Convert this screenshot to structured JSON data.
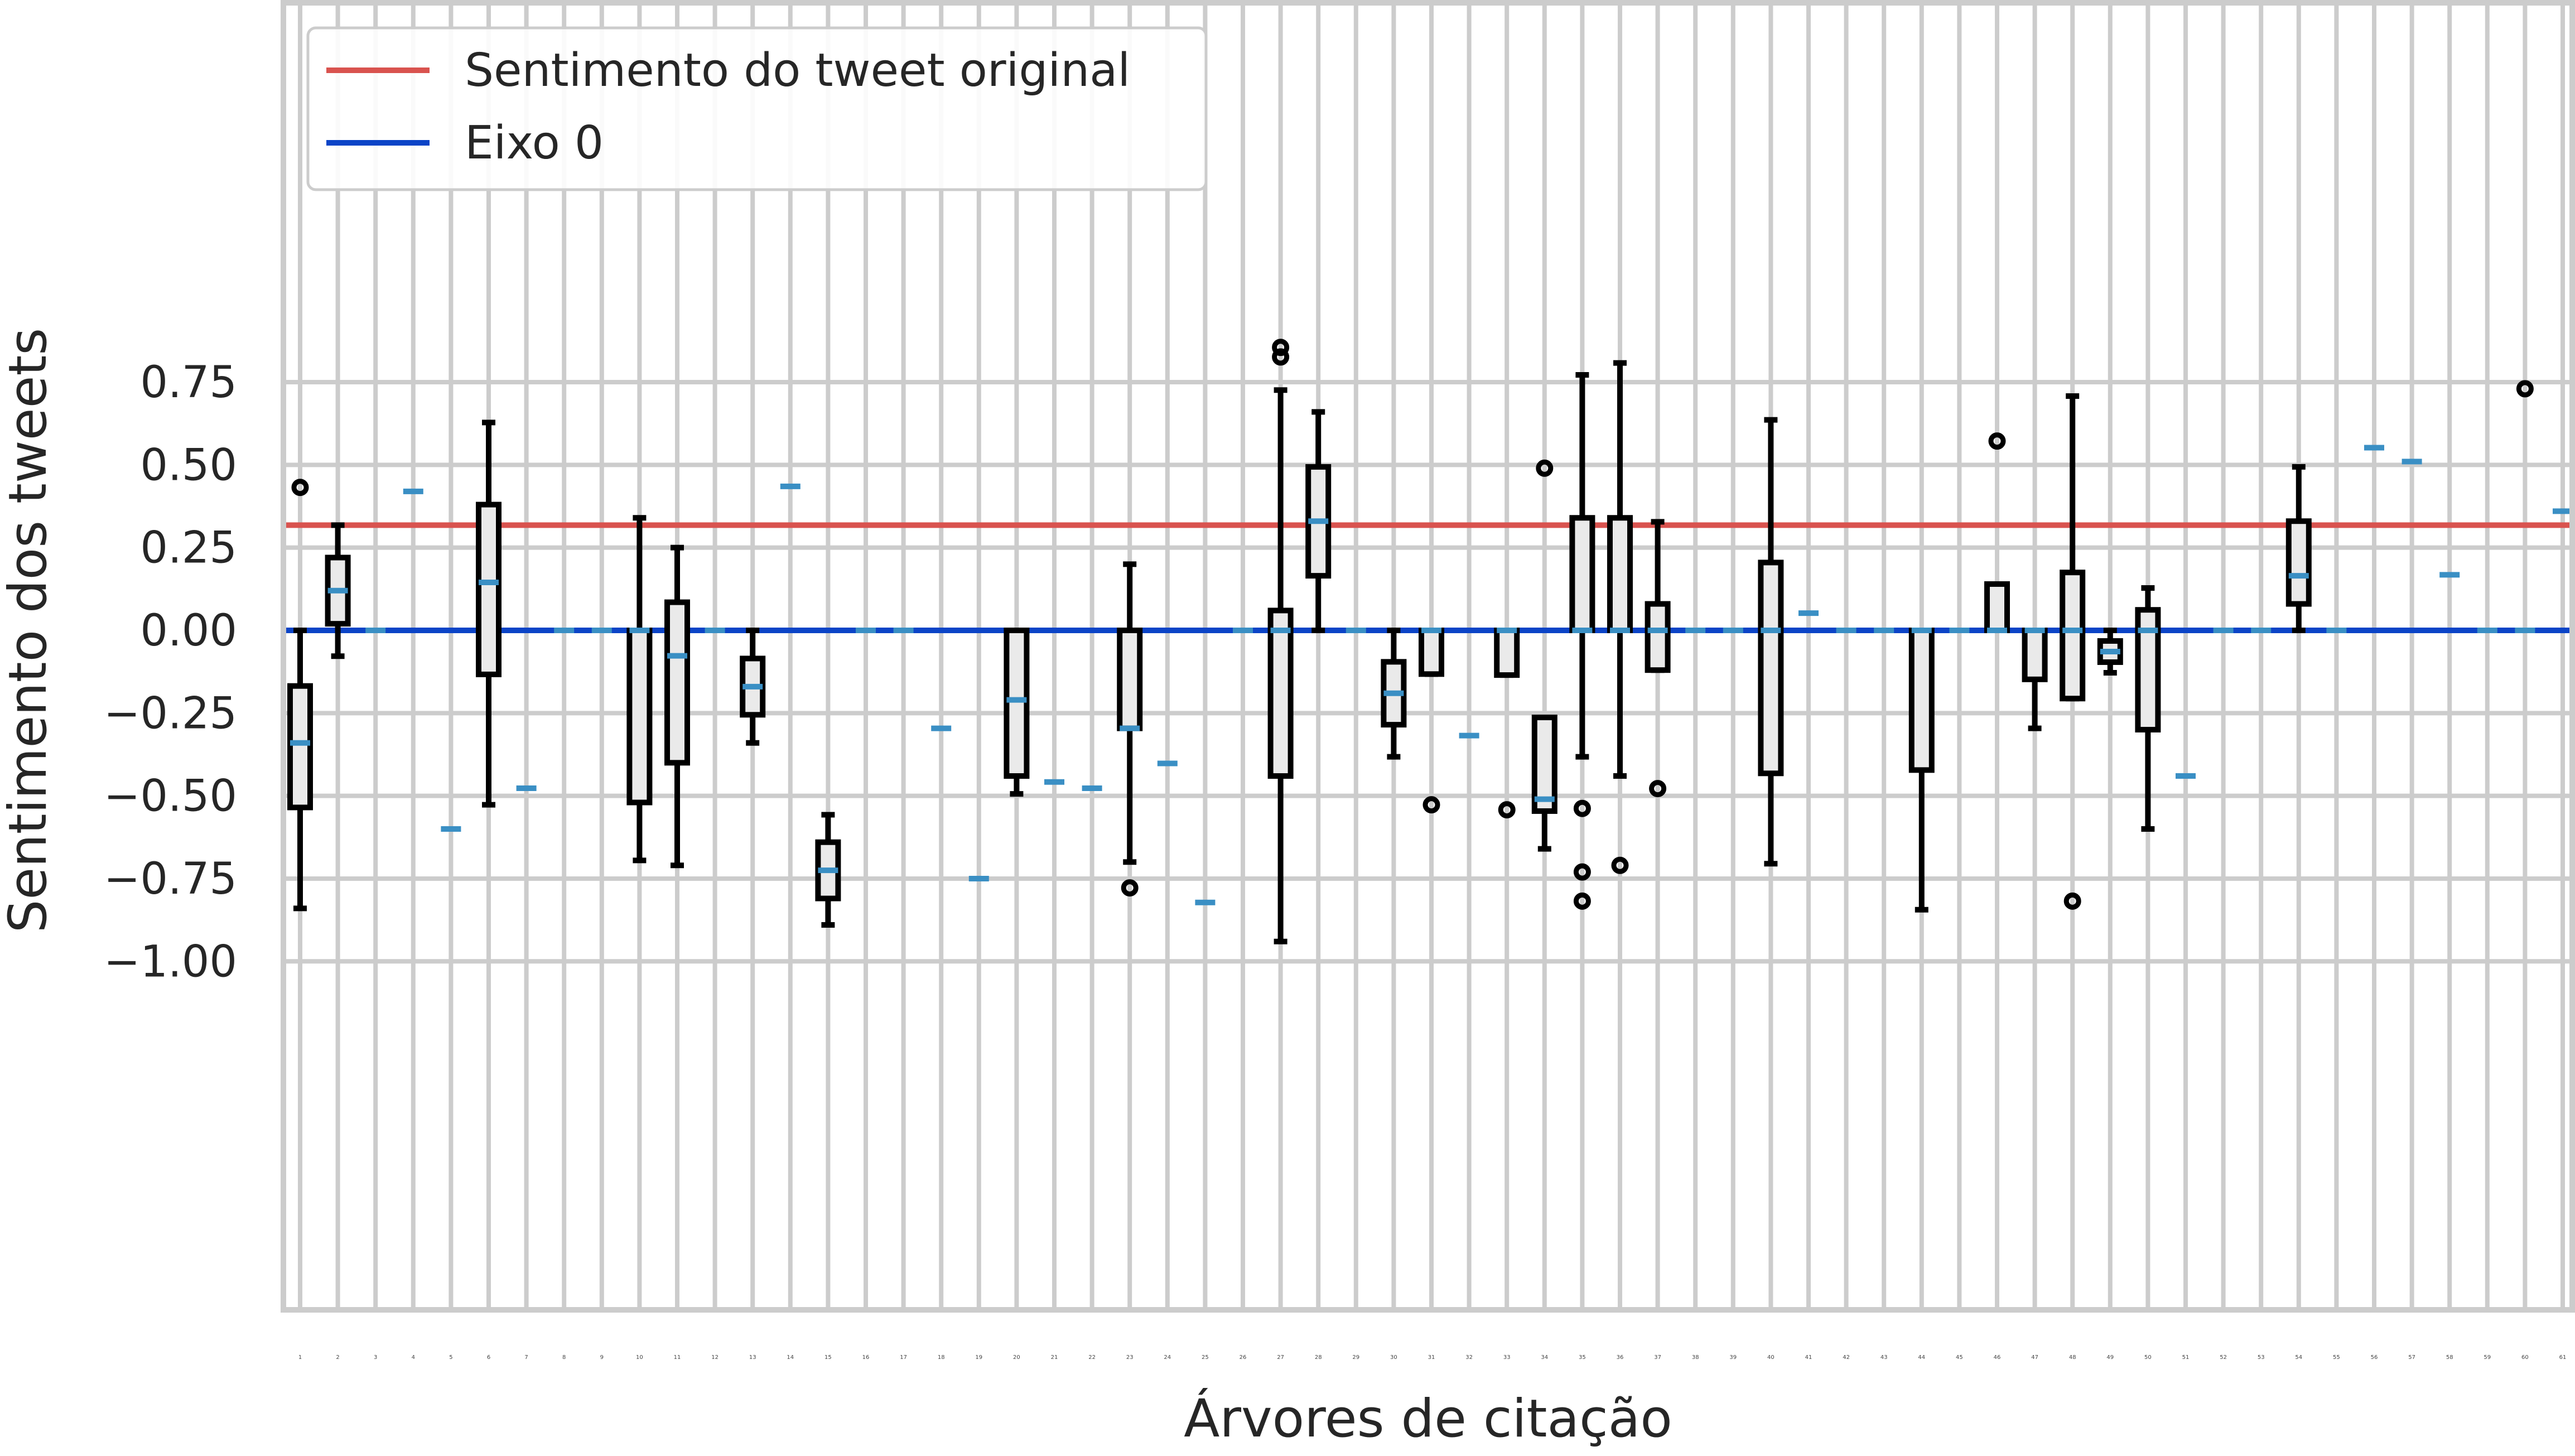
{
  "chart_data": {
    "type": "box",
    "xlabel": "Árvores de citação",
    "ylabel": "Sentimento dos tweets",
    "ylim": [
      -1.0,
      0.92
    ],
    "yticks": [
      "0.75",
      "0.50",
      "0.25",
      "0.00",
      "−0.25",
      "−0.50",
      "−0.75",
      "−1.00"
    ],
    "ytick_values": [
      0.75,
      0.5,
      0.25,
      0.0,
      -0.25,
      -0.5,
      -0.75,
      -1.0
    ],
    "grid": true,
    "legend": {
      "placement": "top-left",
      "entries": [
        {
          "name": "Sentimento do tweet original",
          "color": "#d9534f"
        },
        {
          "name": "Eixo 0",
          "color": "#0b44c7"
        }
      ]
    },
    "reference_lines": [
      {
        "name": "Sentimento do tweet original",
        "y": 0.318,
        "color": "#d9534f"
      },
      {
        "name": "Eixo 0",
        "y": 0.0,
        "color": "#0b44c7"
      }
    ],
    "categories": [
      "1",
      "2",
      "3",
      "4",
      "5",
      "6",
      "7",
      "8",
      "9",
      "10",
      "11",
      "12",
      "13",
      "14",
      "15",
      "16",
      "17",
      "18",
      "19",
      "20",
      "21",
      "22",
      "23",
      "24",
      "25",
      "26",
      "27",
      "28",
      "29",
      "30",
      "31",
      "32",
      "33",
      "34",
      "35",
      "36",
      "37",
      "38",
      "39",
      "40",
      "41",
      "42",
      "43",
      "44",
      "45",
      "46",
      "47",
      "48",
      "49",
      "50",
      "51",
      "52",
      "53",
      "54",
      "55",
      "56",
      "57",
      "58",
      "59",
      "60",
      "61"
    ],
    "boxes": [
      {
        "x": 1,
        "whislo": -0.84,
        "q1": -0.535,
        "med": -0.34,
        "q3": -0.168,
        "whishi": 0.0,
        "fliers": [
          0.432
        ]
      },
      {
        "x": 2,
        "whislo": -0.078,
        "q1": 0.02,
        "med": 0.12,
        "q3": 0.22,
        "whishi": 0.318,
        "fliers": []
      },
      {
        "x": 3,
        "whislo": 0.0,
        "q1": 0.0,
        "med": 0.0,
        "q3": 0.0,
        "whishi": 0.0,
        "fliers": []
      },
      {
        "x": 4,
        "whislo": 0.42,
        "q1": 0.42,
        "med": 0.42,
        "q3": 0.42,
        "whishi": 0.42,
        "fliers": []
      },
      {
        "x": 5,
        "whislo": -0.6,
        "q1": -0.6,
        "med": -0.6,
        "q3": -0.6,
        "whishi": -0.6,
        "fliers": []
      },
      {
        "x": 6,
        "whislo": -0.527,
        "q1": -0.133,
        "med": 0.145,
        "q3": 0.38,
        "whishi": 0.628,
        "fliers": []
      },
      {
        "x": 7,
        "whislo": -0.477,
        "q1": -0.477,
        "med": -0.477,
        "q3": -0.477,
        "whishi": -0.477,
        "fliers": []
      },
      {
        "x": 8,
        "whislo": 0.0,
        "q1": 0.0,
        "med": 0.0,
        "q3": 0.0,
        "whishi": 0.0,
        "fliers": []
      },
      {
        "x": 9,
        "whislo": 0.0,
        "q1": 0.0,
        "med": 0.0,
        "q3": 0.0,
        "whishi": 0.0,
        "fliers": []
      },
      {
        "x": 10,
        "whislo": -0.695,
        "q1": -0.52,
        "med": 0.0,
        "q3": 0.0,
        "whishi": 0.34,
        "fliers": []
      },
      {
        "x": 11,
        "whislo": -0.71,
        "q1": -0.4,
        "med": -0.077,
        "q3": 0.085,
        "whishi": 0.25,
        "fliers": []
      },
      {
        "x": 12,
        "whislo": 0.0,
        "q1": 0.0,
        "med": 0.0,
        "q3": 0.0,
        "whishi": 0.0,
        "fliers": []
      },
      {
        "x": 13,
        "whislo": -0.34,
        "q1": -0.255,
        "med": -0.17,
        "q3": -0.085,
        "whishi": 0.0,
        "fliers": []
      },
      {
        "x": 14,
        "whislo": 0.435,
        "q1": 0.435,
        "med": 0.435,
        "q3": 0.435,
        "whishi": 0.435,
        "fliers": []
      },
      {
        "x": 15,
        "whislo": -0.89,
        "q1": -0.81,
        "med": -0.725,
        "q3": -0.64,
        "whishi": -0.557,
        "fliers": []
      },
      {
        "x": 16,
        "whislo": 0.0,
        "q1": 0.0,
        "med": 0.0,
        "q3": 0.0,
        "whishi": 0.0,
        "fliers": []
      },
      {
        "x": 17,
        "whislo": 0.0,
        "q1": 0.0,
        "med": 0.0,
        "q3": 0.0,
        "whishi": 0.0,
        "fliers": []
      },
      {
        "x": 18,
        "whislo": -0.296,
        "q1": -0.296,
        "med": -0.296,
        "q3": -0.296,
        "whishi": -0.296,
        "fliers": []
      },
      {
        "x": 19,
        "whislo": -0.75,
        "q1": -0.75,
        "med": -0.75,
        "q3": -0.75,
        "whishi": -0.75,
        "fliers": []
      },
      {
        "x": 20,
        "whislo": -0.494,
        "q1": -0.44,
        "med": -0.21,
        "q3": 0.0,
        "whishi": 0.0,
        "fliers": []
      },
      {
        "x": 21,
        "whislo": -0.458,
        "q1": -0.458,
        "med": -0.458,
        "q3": -0.458,
        "whishi": -0.458,
        "fliers": []
      },
      {
        "x": 22,
        "whislo": -0.477,
        "q1": -0.477,
        "med": -0.477,
        "q3": -0.477,
        "whishi": -0.477,
        "fliers": []
      },
      {
        "x": 23,
        "whislo": -0.7,
        "q1": -0.296,
        "med": -0.296,
        "q3": 0.0,
        "whishi": 0.2,
        "fliers": [
          -0.778
        ]
      },
      {
        "x": 24,
        "whislo": -0.402,
        "q1": -0.402,
        "med": -0.402,
        "q3": -0.402,
        "whishi": -0.402,
        "fliers": []
      },
      {
        "x": 25,
        "whislo": -0.822,
        "q1": -0.822,
        "med": -0.822,
        "q3": -0.822,
        "whishi": -0.822,
        "fliers": []
      },
      {
        "x": 26,
        "whislo": 0.0,
        "q1": 0.0,
        "med": 0.0,
        "q3": 0.0,
        "whishi": 0.0,
        "fliers": []
      },
      {
        "x": 27,
        "whislo": -0.94,
        "q1": -0.44,
        "med": 0.0,
        "q3": 0.06,
        "whishi": 0.726,
        "fliers": [
          0.855,
          0.826
        ]
      },
      {
        "x": 28,
        "whislo": 0.0,
        "q1": 0.165,
        "med": 0.33,
        "q3": 0.494,
        "whishi": 0.66,
        "fliers": []
      },
      {
        "x": 29,
        "whislo": 0.0,
        "q1": 0.0,
        "med": 0.0,
        "q3": 0.0,
        "whishi": 0.0,
        "fliers": []
      },
      {
        "x": 30,
        "whislo": -0.382,
        "q1": -0.285,
        "med": -0.19,
        "q3": -0.095,
        "whishi": 0.0,
        "fliers": []
      },
      {
        "x": 31,
        "whislo": -0.132,
        "q1": -0.132,
        "med": 0.0,
        "q3": 0.0,
        "whishi": 0.0,
        "fliers": [
          -0.527
        ]
      },
      {
        "x": 32,
        "whislo": -0.318,
        "q1": -0.318,
        "med": -0.318,
        "q3": -0.318,
        "whishi": -0.318,
        "fliers": []
      },
      {
        "x": 33,
        "whislo": -0.135,
        "q1": -0.135,
        "med": 0.0,
        "q3": 0.0,
        "whishi": 0.0,
        "fliers": [
          -0.542
        ]
      },
      {
        "x": 34,
        "whislo": -0.66,
        "q1": -0.546,
        "med": -0.51,
        "q3": -0.263,
        "whishi": -0.263,
        "fliers": [
          0.49
        ]
      },
      {
        "x": 35,
        "whislo": -0.382,
        "q1": 0.0,
        "med": 0.0,
        "q3": 0.34,
        "whishi": 0.772,
        "fliers": [
          -0.538,
          -0.73,
          -0.818
        ]
      },
      {
        "x": 36,
        "whislo": -0.44,
        "q1": 0.0,
        "med": 0.0,
        "q3": 0.34,
        "whishi": 0.808,
        "fliers": [
          -0.71
        ]
      },
      {
        "x": 37,
        "whislo": -0.12,
        "q1": -0.12,
        "med": 0.0,
        "q3": 0.08,
        "whishi": 0.328,
        "fliers": [
          -0.478
        ]
      },
      {
        "x": 38,
        "whislo": 0.0,
        "q1": 0.0,
        "med": 0.0,
        "q3": 0.0,
        "whishi": 0.0,
        "fliers": []
      },
      {
        "x": 39,
        "whislo": 0.0,
        "q1": 0.0,
        "med": 0.0,
        "q3": 0.0,
        "whishi": 0.0,
        "fliers": []
      },
      {
        "x": 40,
        "whislo": -0.705,
        "q1": -0.432,
        "med": 0.0,
        "q3": 0.205,
        "whishi": 0.636,
        "fliers": []
      },
      {
        "x": 41,
        "whislo": 0.052,
        "q1": 0.052,
        "med": 0.052,
        "q3": 0.052,
        "whishi": 0.052,
        "fliers": []
      },
      {
        "x": 42,
        "whislo": 0.0,
        "q1": 0.0,
        "med": 0.0,
        "q3": 0.0,
        "whishi": 0.0,
        "fliers": []
      },
      {
        "x": 43,
        "whislo": 0.0,
        "q1": 0.0,
        "med": 0.0,
        "q3": 0.0,
        "whishi": 0.0,
        "fliers": []
      },
      {
        "x": 44,
        "whislo": -0.844,
        "q1": -0.422,
        "med": 0.0,
        "q3": 0.0,
        "whishi": 0.0,
        "fliers": []
      },
      {
        "x": 45,
        "whislo": 0.0,
        "q1": 0.0,
        "med": 0.0,
        "q3": 0.0,
        "whishi": 0.0,
        "fliers": []
      },
      {
        "x": 46,
        "whislo": 0.0,
        "q1": 0.0,
        "med": 0.0,
        "q3": 0.14,
        "whishi": 0.14,
        "fliers": [
          0.572
        ]
      },
      {
        "x": 47,
        "whislo": -0.296,
        "q1": -0.148,
        "med": 0.0,
        "q3": 0.0,
        "whishi": 0.0,
        "fliers": []
      },
      {
        "x": 48,
        "whislo": -0.206,
        "q1": -0.206,
        "med": 0.0,
        "q3": 0.175,
        "whishi": 0.708,
        "fliers": [
          -0.818
        ]
      },
      {
        "x": 49,
        "whislo": -0.128,
        "q1": -0.096,
        "med": -0.064,
        "q3": -0.032,
        "whishi": 0.0,
        "fliers": []
      },
      {
        "x": 50,
        "whislo": -0.6,
        "q1": -0.3,
        "med": 0.0,
        "q3": 0.062,
        "whishi": 0.128,
        "fliers": []
      },
      {
        "x": 51,
        "whislo": -0.44,
        "q1": -0.44,
        "med": -0.44,
        "q3": -0.44,
        "whishi": -0.44,
        "fliers": []
      },
      {
        "x": 52,
        "whislo": 0.0,
        "q1": 0.0,
        "med": 0.0,
        "q3": 0.0,
        "whishi": 0.0,
        "fliers": []
      },
      {
        "x": 53,
        "whislo": 0.0,
        "q1": 0.0,
        "med": 0.0,
        "q3": 0.0,
        "whishi": 0.0,
        "fliers": []
      },
      {
        "x": 54,
        "whislo": 0.0,
        "q1": 0.08,
        "med": 0.165,
        "q3": 0.33,
        "whishi": 0.494,
        "fliers": []
      },
      {
        "x": 55,
        "whislo": 0.0,
        "q1": 0.0,
        "med": 0.0,
        "q3": 0.0,
        "whishi": 0.0,
        "fliers": []
      },
      {
        "x": 56,
        "whislo": 0.552,
        "q1": 0.552,
        "med": 0.552,
        "q3": 0.552,
        "whishi": 0.552,
        "fliers": []
      },
      {
        "x": 57,
        "whislo": 0.51,
        "q1": 0.51,
        "med": 0.51,
        "q3": 0.51,
        "whishi": 0.51,
        "fliers": []
      },
      {
        "x": 58,
        "whislo": 0.168,
        "q1": 0.168,
        "med": 0.168,
        "q3": 0.168,
        "whishi": 0.168,
        "fliers": []
      },
      {
        "x": 59,
        "whislo": 0.0,
        "q1": 0.0,
        "med": 0.0,
        "q3": 0.0,
        "whishi": 0.0,
        "fliers": []
      },
      {
        "x": 60,
        "whislo": 0.0,
        "q1": 0.0,
        "med": 0.0,
        "q3": 0.0,
        "whishi": 0.0,
        "fliers": [
          0.73
        ]
      },
      {
        "x": 61,
        "whislo": 0.36,
        "q1": 0.36,
        "med": 0.36,
        "q3": 0.36,
        "whishi": 0.36,
        "fliers": []
      }
    ],
    "colors": {
      "box_fill": "#eaeaea",
      "box_edge": "#000000",
      "median": "#3a8fc4",
      "grid": "#cccccc"
    }
  }
}
